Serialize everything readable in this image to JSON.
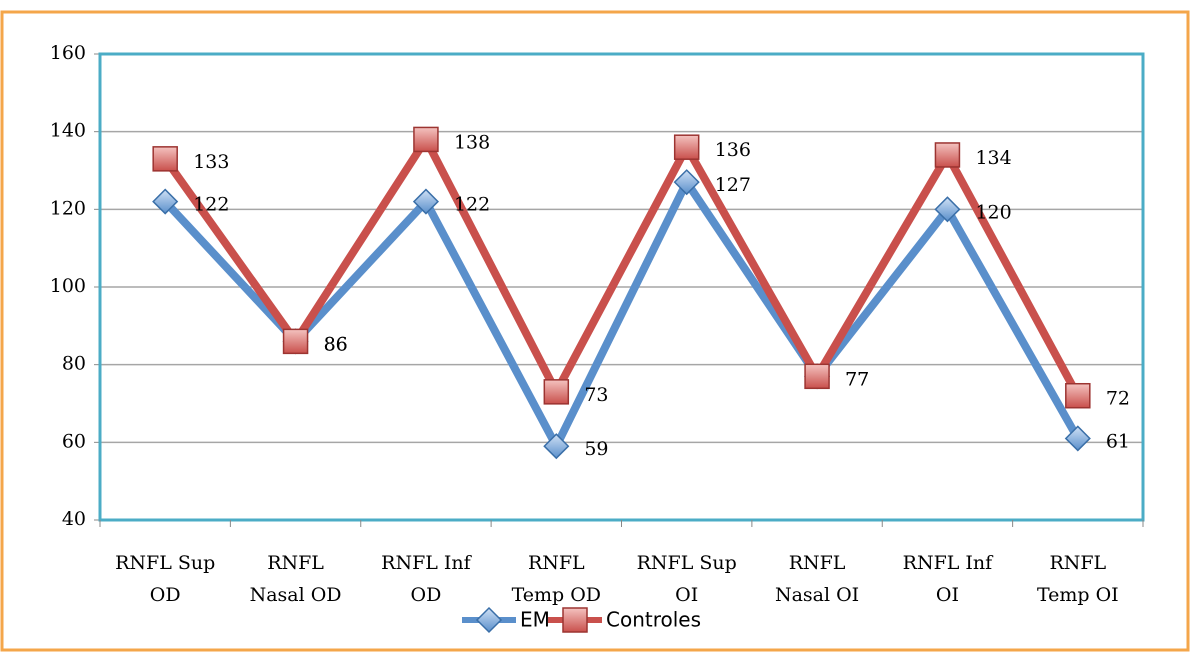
{
  "chart_data": {
    "type": "line",
    "categories": [
      "RNFL Sup\nOD",
      "RNFL\nNasal OD",
      "RNFL Inf\nOD",
      "RNFL\nTemp OD",
      "RNFL Sup\nOI",
      "RNFL\nNasal OI",
      "RNFL Inf\nOI",
      "RNFL\nTemp OI"
    ],
    "series": [
      {
        "name": "EM",
        "color": "#5a8fcb",
        "values": [
          122,
          86,
          122,
          59,
          127,
          77,
          120,
          61
        ]
      },
      {
        "name": "Controles",
        "color": "#c9504c",
        "values": [
          133,
          86,
          138,
          73,
          136,
          77,
          134,
          72
        ]
      }
    ],
    "ylim": [
      40,
      160
    ],
    "yticks": [
      40,
      60,
      80,
      100,
      120,
      140,
      160
    ],
    "grid": true,
    "legend": "bottom"
  }
}
